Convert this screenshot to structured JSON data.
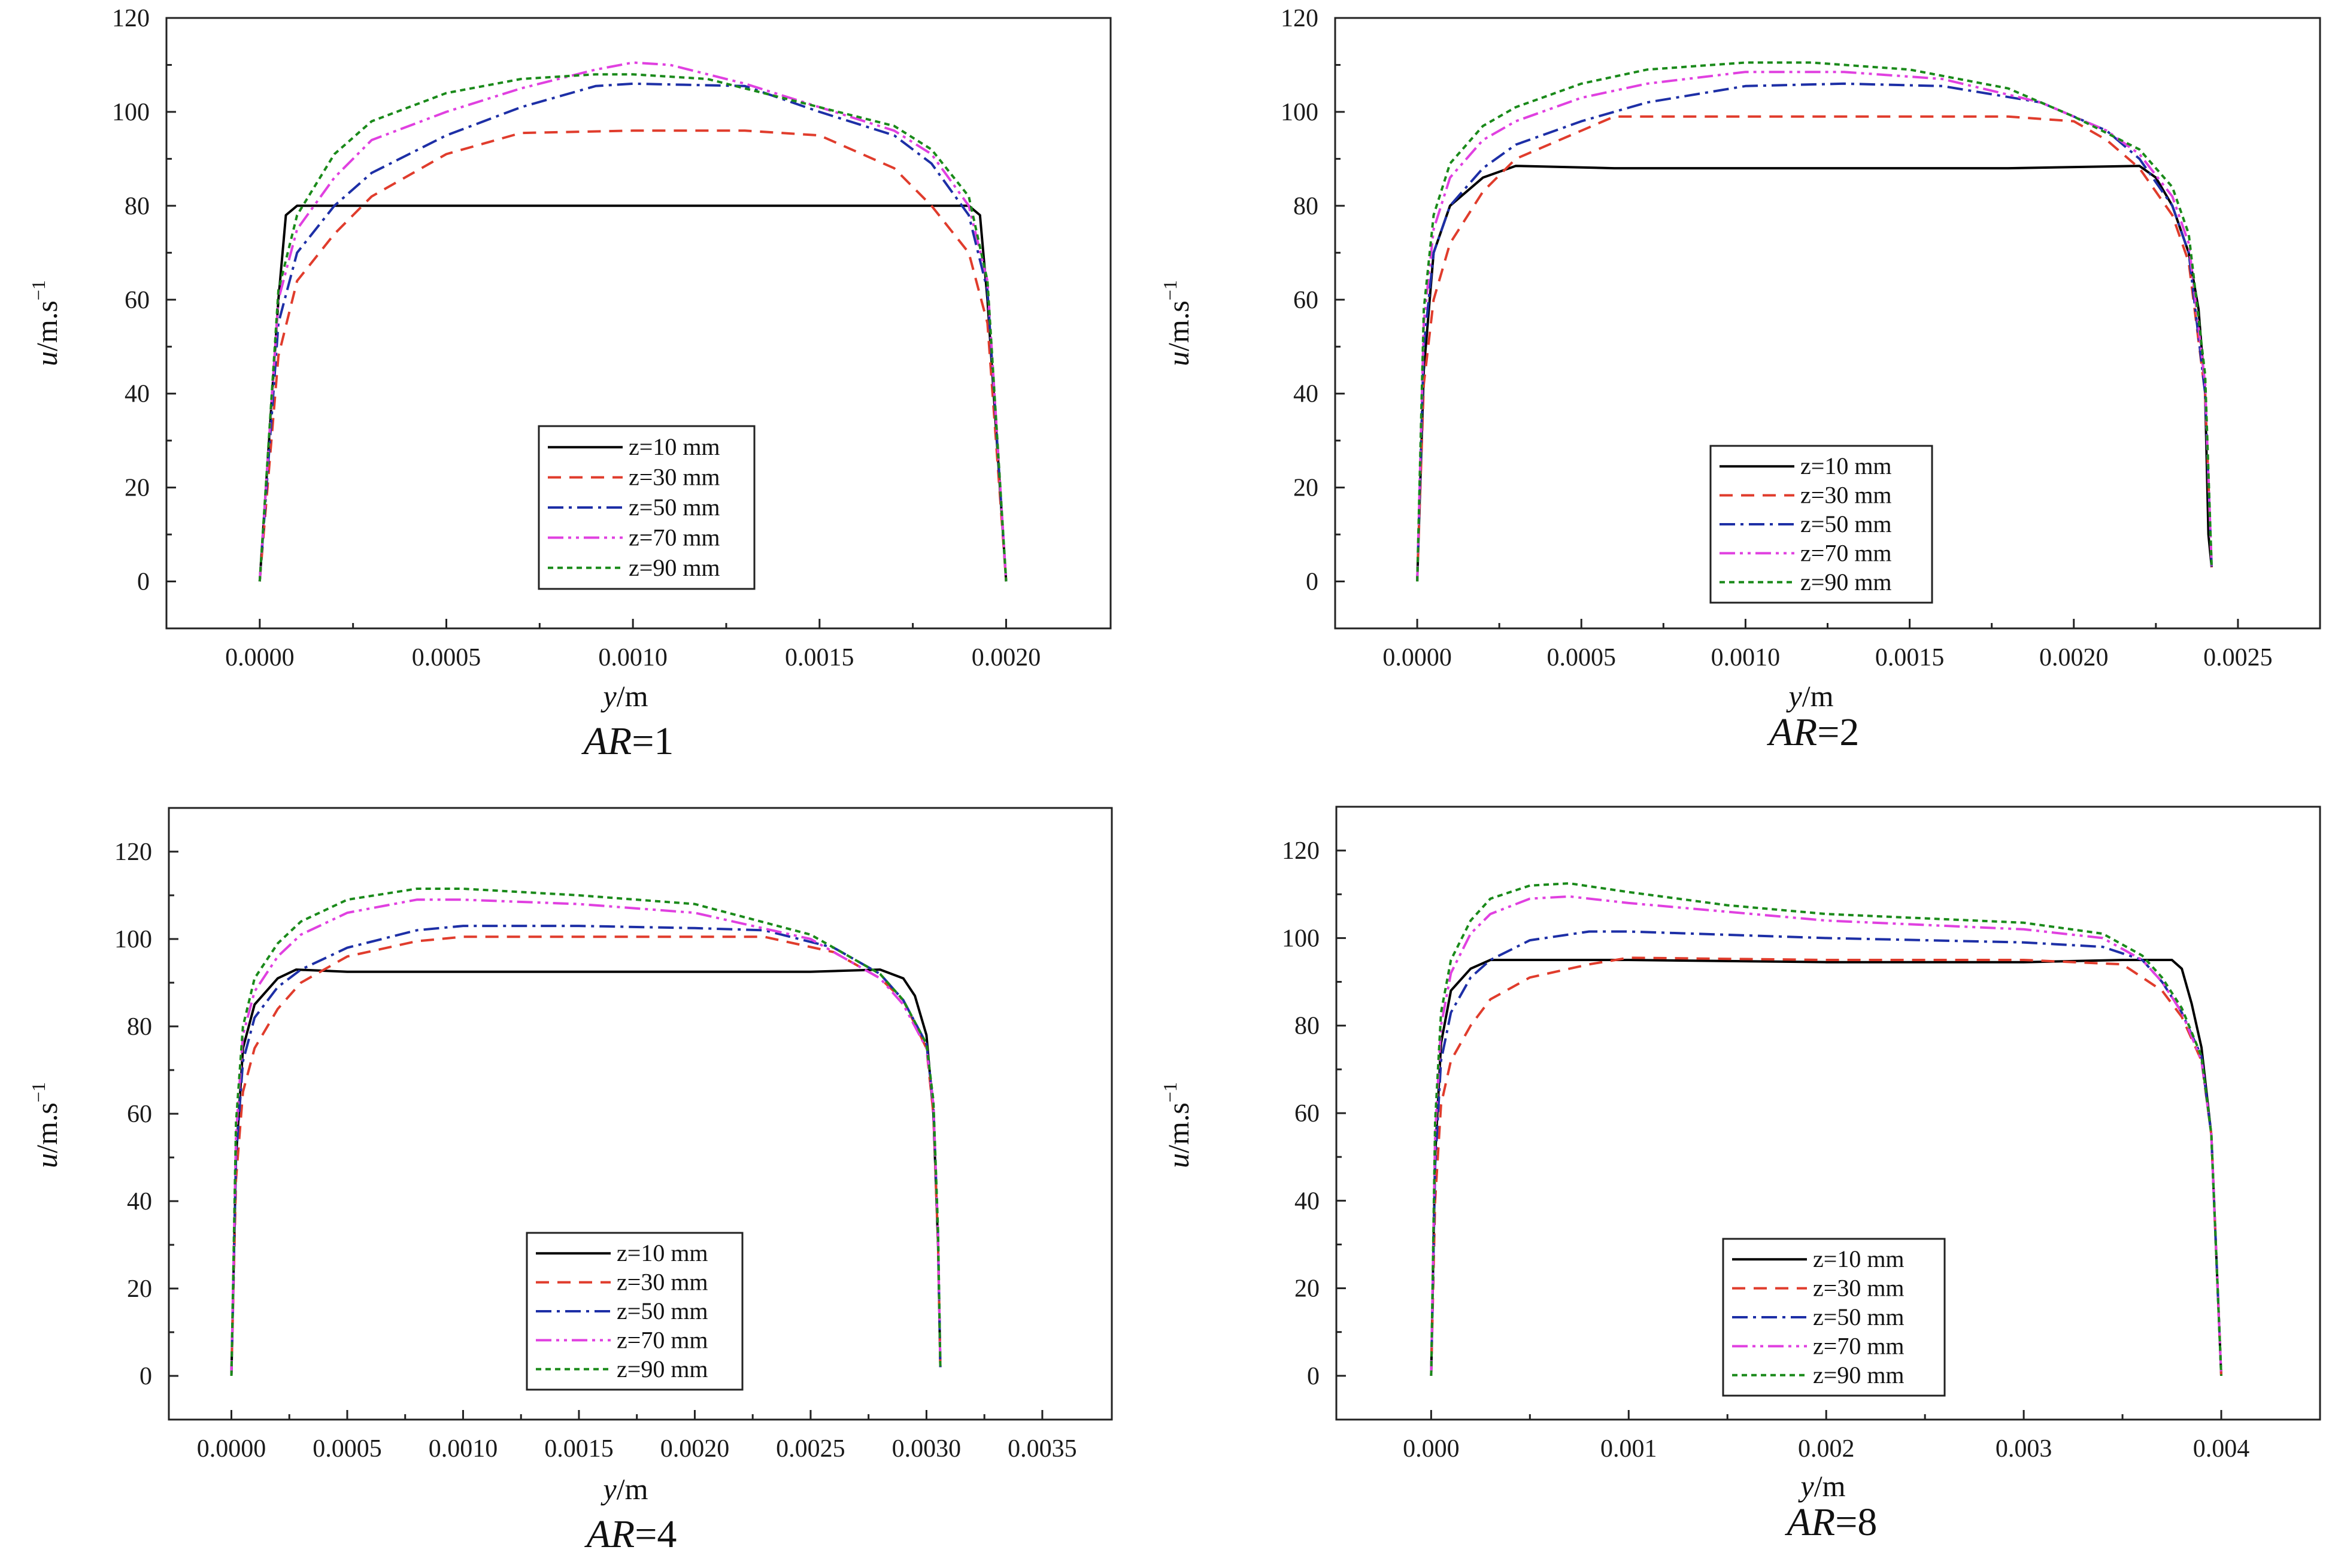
{
  "figure_type": "velocity profiles",
  "chart_data": [
    {
      "type": "line",
      "caption_prefix": "AR",
      "caption_value": "=1",
      "xlabel_var": "y",
      "xlabel_unit": "/m",
      "ylabel_var": "u",
      "ylabel_unit": "/m.s",
      "ylabel_exp": "−1",
      "xlim": [
        -0.00025,
        0.00228
      ],
      "ylim": [
        -10,
        120
      ],
      "xticks": [
        0.0,
        0.0005,
        0.001,
        0.0015,
        0.002
      ],
      "xtick_labels": [
        "0.0000",
        "0.0005",
        "0.0010",
        "0.0015",
        "0.0020"
      ],
      "yticks": [
        0,
        20,
        40,
        60,
        80,
        100,
        120
      ],
      "ytick_labels": [
        "0",
        "20",
        "40",
        "60",
        "80",
        "100",
        "120"
      ],
      "series": [
        {
          "name": "z=10 mm",
          "color": "#000000",
          "dash": "",
          "x": [
            0,
            5e-05,
            7e-05,
            0.0001,
            0.001,
            0.0019,
            0.00193,
            0.00195,
            0.002
          ],
          "y": [
            0,
            60,
            78,
            80,
            80,
            80,
            78,
            60,
            0
          ]
        },
        {
          "name": "z=30 mm",
          "color": "#e03c2c",
          "dash": "22,14",
          "x": [
            0,
            5e-05,
            0.0001,
            0.0002,
            0.0003,
            0.0005,
            0.0007,
            0.001,
            0.0013,
            0.0015,
            0.0017,
            0.0018,
            0.0019,
            0.00195,
            0.002
          ],
          "y": [
            0,
            48,
            64,
            74,
            82,
            91,
            95.5,
            96,
            96,
            95,
            88,
            80,
            70,
            55,
            0
          ]
        },
        {
          "name": "z=50 mm",
          "color": "#1d2fa6",
          "dash": "26,9,5,9",
          "x": [
            0,
            5e-05,
            0.0001,
            0.0002,
            0.0003,
            0.0005,
            0.0007,
            0.0009,
            0.001,
            0.0013,
            0.0015,
            0.0017,
            0.0018,
            0.0019,
            0.00195,
            0.002
          ],
          "y": [
            0,
            55,
            70,
            80,
            87,
            95,
            101,
            105.5,
            106,
            105.5,
            100,
            95,
            89,
            78,
            62,
            0
          ]
        },
        {
          "name": "z=70 mm",
          "color": "#e040e0",
          "dash": "26,8,5,8,5,8",
          "x": [
            0,
            5e-05,
            0.0001,
            0.0002,
            0.0003,
            0.0005,
            0.0007,
            0.0009,
            0.001,
            0.0011,
            0.0013,
            0.0015,
            0.0017,
            0.0018,
            0.0019,
            0.00195,
            0.002
          ],
          "y": [
            0,
            60,
            75,
            86,
            94,
            100,
            105,
            109,
            110.5,
            110,
            106,
            101,
            96,
            91,
            80,
            64,
            0
          ]
        },
        {
          "name": "z=90 mm",
          "color": "#1a8a1a",
          "dash": "9,7",
          "x": [
            0,
            5e-05,
            0.0001,
            0.0002,
            0.0003,
            0.0005,
            0.0007,
            0.0009,
            0.001,
            0.0012,
            0.0015,
            0.0017,
            0.0018,
            0.0019,
            0.00195,
            0.002
          ],
          "y": [
            0,
            62,
            78,
            91,
            98,
            104,
            107,
            108,
            108,
            107,
            101,
            97,
            92,
            82,
            64,
            0
          ]
        }
      ],
      "legend": {
        "position": "bottom-center"
      }
    },
    {
      "type": "line",
      "caption_prefix": "AR",
      "caption_value": "=2",
      "xlabel_var": "y",
      "xlabel_unit": "/m",
      "ylabel_var": "u",
      "ylabel_unit": "/m.s",
      "ylabel_exp": "−1",
      "xlim": [
        -0.00025,
        0.00275
      ],
      "ylim": [
        -10,
        120
      ],
      "xticks": [
        0.0,
        0.0005,
        0.001,
        0.0015,
        0.002,
        0.0025
      ],
      "xtick_labels": [
        "0.0000",
        "0.0005",
        "0.0010",
        "0.0015",
        "0.0020",
        "0.0025"
      ],
      "yticks": [
        0,
        20,
        40,
        60,
        80,
        100,
        120
      ],
      "ytick_labels": [
        "0",
        "20",
        "40",
        "60",
        "80",
        "100",
        "120"
      ],
      "series": [
        {
          "name": "z=10 mm",
          "color": "#000000",
          "dash": "",
          "x": [
            0,
            2e-05,
            5e-05,
            0.0001,
            0.0002,
            0.0003,
            0.0006,
            0.0012,
            0.0018,
            0.0022,
            0.00225,
            0.0023,
            0.00235,
            0.00238,
            0.0024,
            0.00241,
            0.00242
          ],
          "y": [
            0,
            45,
            70,
            80,
            86,
            88.5,
            88,
            88,
            88,
            88.5,
            86,
            80,
            70,
            58,
            40,
            10,
            3
          ]
        },
        {
          "name": "z=30 mm",
          "color": "#e03c2c",
          "dash": "22,14",
          "x": [
            0,
            2e-05,
            5e-05,
            0.0001,
            0.0002,
            0.0003,
            0.0005,
            0.0006,
            0.0012,
            0.0018,
            0.002,
            0.0021,
            0.0022,
            0.0023,
            0.00235,
            0.0024,
            0.00242
          ],
          "y": [
            0,
            42,
            60,
            72,
            83,
            90,
            96,
            99,
            99,
            99,
            98,
            94,
            88,
            78,
            68,
            40,
            3
          ]
        },
        {
          "name": "z=50 mm",
          "color": "#1d2fa6",
          "dash": "26,9,5,9",
          "x": [
            0,
            2e-05,
            5e-05,
            0.0001,
            0.0002,
            0.0003,
            0.0005,
            0.0007,
            0.001,
            0.0013,
            0.0016,
            0.0019,
            0.0021,
            0.0022,
            0.0023,
            0.00235,
            0.0024,
            0.00242
          ],
          "y": [
            0,
            50,
            70,
            80,
            88,
            93,
            98,
            102,
            105.5,
            106,
            105.5,
            102,
            96,
            90,
            80,
            70,
            40,
            3
          ]
        },
        {
          "name": "z=70 mm",
          "color": "#e040e0",
          "dash": "26,8,5,8,5,8",
          "x": [
            0,
            2e-05,
            5e-05,
            0.0001,
            0.0002,
            0.0003,
            0.0005,
            0.0007,
            0.001,
            0.0013,
            0.0016,
            0.0019,
            0.0021,
            0.0022,
            0.0023,
            0.00235,
            0.0024,
            0.00242
          ],
          "y": [
            0,
            55,
            75,
            86,
            94,
            98,
            103,
            106,
            108.5,
            108.5,
            107,
            102,
            96,
            91,
            82,
            72,
            42,
            3
          ]
        },
        {
          "name": "z=90 mm",
          "color": "#1a8a1a",
          "dash": "9,7",
          "x": [
            0,
            2e-05,
            5e-05,
            0.0001,
            0.0002,
            0.0003,
            0.0005,
            0.0007,
            0.001,
            0.0012,
            0.0015,
            0.0018,
            0.002,
            0.0022,
            0.0023,
            0.00235,
            0.0024,
            0.00242
          ],
          "y": [
            0,
            58,
            78,
            89,
            97,
            101,
            106,
            109,
            110.5,
            110.5,
            109,
            105,
            99,
            92,
            84,
            74,
            44,
            3
          ]
        }
      ],
      "legend": {
        "position": "bottom-center"
      }
    },
    {
      "type": "line",
      "caption_prefix": "AR",
      "caption_value": "=4",
      "xlabel_var": "y",
      "xlabel_unit": "/m",
      "ylabel_var": "u",
      "ylabel_unit": "/m.s",
      "ylabel_exp": "−1",
      "xlim": [
        -0.00027,
        0.0038
      ],
      "ylim": [
        -10,
        130
      ],
      "xticks": [
        0.0,
        0.0005,
        0.001,
        0.0015,
        0.002,
        0.0025,
        0.003,
        0.0035
      ],
      "xtick_labels": [
        "0.0000",
        "0.0005",
        "0.0010",
        "0.0015",
        "0.0020",
        "0.0025",
        "0.0030",
        "0.0035"
      ],
      "yticks": [
        0,
        20,
        40,
        60,
        80,
        100,
        120
      ],
      "ytick_labels": [
        "0",
        "20",
        "40",
        "60",
        "80",
        "100",
        "120"
      ],
      "series": [
        {
          "name": "z=10 mm",
          "color": "#000000",
          "dash": "",
          "x": [
            0,
            2e-05,
            5e-05,
            0.0001,
            0.0002,
            0.00028,
            0.0005,
            0.001,
            0.0015,
            0.002,
            0.0025,
            0.0028,
            0.0029,
            0.00295,
            0.003,
            0.00303,
            0.00305,
            0.00306
          ],
          "y": [
            0,
            50,
            75,
            85,
            91,
            93,
            92.5,
            92.5,
            92.5,
            92.5,
            92.5,
            93,
            91,
            87,
            78,
            60,
            30,
            2
          ]
        },
        {
          "name": "z=30 mm",
          "color": "#e03c2c",
          "dash": "22,14",
          "x": [
            0,
            2e-05,
            5e-05,
            0.0001,
            0.0002,
            0.0003,
            0.0005,
            0.0008,
            0.001,
            0.0015,
            0.002,
            0.0023,
            0.0026,
            0.0028,
            0.0029,
            0.003,
            0.00303,
            0.00305,
            0.00306
          ],
          "y": [
            0,
            45,
            65,
            75,
            84,
            90,
            96,
            99.5,
            100.5,
            100.5,
            100.5,
            100.5,
            97,
            91,
            86,
            75,
            60,
            30,
            2
          ]
        },
        {
          "name": "z=50 mm",
          "color": "#1d2fa6",
          "dash": "26,9,5,9",
          "x": [
            0,
            2e-05,
            5e-05,
            0.0001,
            0.0002,
            0.0003,
            0.0005,
            0.0008,
            0.001,
            0.0015,
            0.002,
            0.0023,
            0.0026,
            0.0028,
            0.0029,
            0.003,
            0.00303,
            0.00305,
            0.00306
          ],
          "y": [
            0,
            50,
            72,
            82,
            89,
            93,
            98,
            102,
            103,
            103,
            102.5,
            102,
            98,
            92,
            86,
            76,
            62,
            32,
            2
          ]
        },
        {
          "name": "z=70 mm",
          "color": "#e040e0",
          "dash": "26,8,5,8,5,8",
          "x": [
            0,
            2e-05,
            5e-05,
            0.0001,
            0.0002,
            0.0003,
            0.0005,
            0.0008,
            0.001,
            0.0015,
            0.002,
            0.0025,
            0.0028,
            0.0029,
            0.003,
            0.00303,
            0.00305,
            0.00306
          ],
          "y": [
            0,
            55,
            78,
            88,
            96,
            101,
            106,
            109,
            109,
            108,
            106,
            100,
            91,
            85,
            75,
            62,
            32,
            2
          ]
        },
        {
          "name": "z=90 mm",
          "color": "#1a8a1a",
          "dash": "9,7",
          "x": [
            0,
            2e-05,
            5e-05,
            0.0001,
            0.0002,
            0.0003,
            0.0005,
            0.0008,
            0.001,
            0.0015,
            0.002,
            0.0025,
            0.0028,
            0.0029,
            0.003,
            0.00303,
            0.00305,
            0.00306
          ],
          "y": [
            0,
            58,
            80,
            91,
            99,
            104,
            109,
            111.5,
            111.5,
            110,
            108,
            101,
            92,
            86,
            76,
            63,
            33,
            2
          ]
        }
      ],
      "legend": {
        "position": "bottom-center"
      }
    },
    {
      "type": "line",
      "caption_prefix": "AR",
      "caption_value": "=8",
      "xlabel_var": "y",
      "xlabel_unit": "/m",
      "ylabel_var": "u",
      "ylabel_unit": "/m.s",
      "ylabel_exp": "−1",
      "xlim": [
        -0.00048,
        0.0045
      ],
      "ylim": [
        -10,
        130
      ],
      "xticks": [
        0.0,
        0.001,
        0.002,
        0.003,
        0.004
      ],
      "xtick_labels": [
        "0.000",
        "0.001",
        "0.002",
        "0.003",
        "0.004"
      ],
      "yticks": [
        0,
        20,
        40,
        60,
        80,
        100,
        120
      ],
      "ytick_labels": [
        "0",
        "20",
        "40",
        "60",
        "80",
        "100",
        "120"
      ],
      "series": [
        {
          "name": "z=10 mm",
          "color": "#000000",
          "dash": "",
          "x": [
            0,
            2e-05,
            5e-05,
            0.0001,
            0.0002,
            0.0003,
            0.001,
            0.002,
            0.003,
            0.0035,
            0.0037,
            0.00375,
            0.0038,
            0.00385,
            0.0039,
            0.00395,
            0.004
          ],
          "y": [
            0,
            50,
            76,
            88,
            93,
            95,
            95,
            94.5,
            94.5,
            95,
            95,
            95,
            93,
            85,
            75,
            55,
            0
          ]
        },
        {
          "name": "z=30 mm",
          "color": "#e03c2c",
          "dash": "22,14",
          "x": [
            0,
            2e-05,
            5e-05,
            0.0001,
            0.0002,
            0.0003,
            0.0005,
            0.0008,
            0.001,
            0.002,
            0.003,
            0.0035,
            0.0037,
            0.0038,
            0.0039,
            0.00395,
            0.004
          ],
          "y": [
            0,
            40,
            62,
            72,
            80,
            86,
            91,
            94,
            95.5,
            95,
            95,
            94,
            88,
            82,
            72,
            55,
            0
          ]
        },
        {
          "name": "z=50 mm",
          "color": "#1d2fa6",
          "dash": "26,9,5,9",
          "x": [
            0,
            2e-05,
            5e-05,
            0.0001,
            0.0002,
            0.0003,
            0.0005,
            0.0008,
            0.001,
            0.002,
            0.003,
            0.0034,
            0.0036,
            0.0037,
            0.0038,
            0.0039,
            0.00395,
            0.004
          ],
          "y": [
            0,
            48,
            72,
            83,
            91,
            95,
            99.5,
            101.5,
            101.5,
            100,
            99,
            98,
            95,
            90,
            83,
            73,
            55,
            0
          ]
        },
        {
          "name": "z=70 mm",
          "color": "#e040e0",
          "dash": "26,8,5,8,5,8",
          "x": [
            0,
            2e-05,
            5e-05,
            0.0001,
            0.0002,
            0.0003,
            0.0005,
            0.0007,
            0.001,
            0.0015,
            0.002,
            0.003,
            0.0034,
            0.0036,
            0.0037,
            0.0038,
            0.0039,
            0.00395,
            0.004
          ],
          "y": [
            0,
            55,
            80,
            92,
            101,
            105.5,
            109,
            109.5,
            108,
            106,
            104,
            102,
            100,
            95,
            90,
            83,
            72,
            55,
            0
          ]
        },
        {
          "name": "z=90 mm",
          "color": "#1a8a1a",
          "dash": "9,7",
          "x": [
            0,
            2e-05,
            5e-05,
            0.0001,
            0.0002,
            0.0003,
            0.0005,
            0.0007,
            0.001,
            0.0015,
            0.002,
            0.003,
            0.0034,
            0.0036,
            0.0037,
            0.0038,
            0.0039,
            0.00395,
            0.004
          ],
          "y": [
            0,
            58,
            83,
            95,
            104,
            109,
            112,
            112.5,
            110.5,
            107.5,
            105.5,
            103.5,
            101,
            96,
            91,
            84,
            73,
            55,
            0
          ]
        }
      ],
      "legend": {
        "position": "bottom-center"
      }
    }
  ]
}
